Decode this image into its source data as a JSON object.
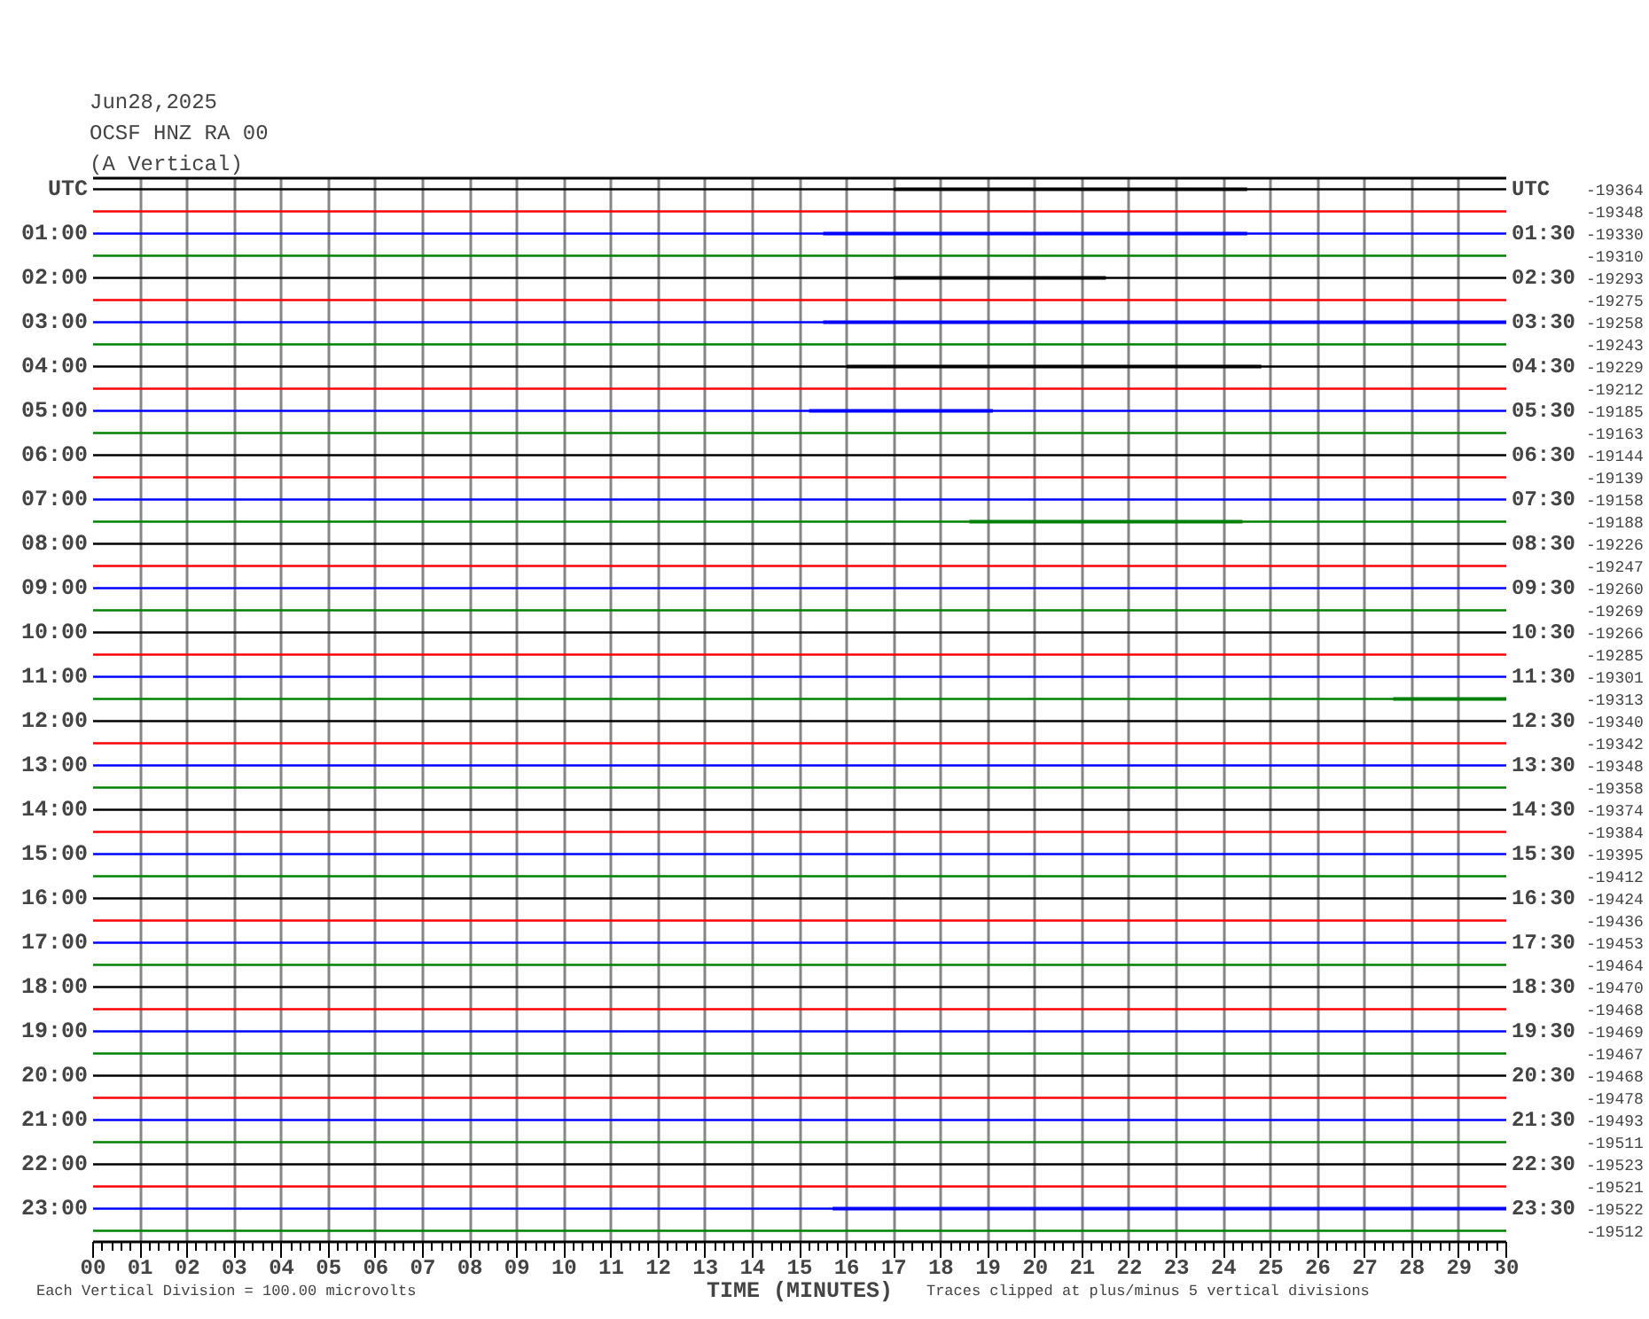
{
  "chart_data": {
    "type": "line",
    "title": "Jun28,2025",
    "subtitle": "OCSF HNZ RA 00\n(A Vertical)",
    "xlabel": "TIME (MINUTES)",
    "annotations": [
      "Each Vertical Division =  100.00 microvolts",
      "Traces clipped at plus/minus 5 vertical divisions",
      "-19364",
      "-19348",
      "-19330",
      "-19310",
      "-19293",
      "-19275",
      "-19258",
      "-19243",
      "-19229",
      "-19212",
      "-19185",
      "-19163",
      "-19144",
      "-19139",
      "-19158",
      "-19188",
      "-19226",
      "-19247",
      "-19260",
      "-19269",
      "-19266",
      "-19285",
      "-19301",
      "-19313",
      "-19340",
      "-19342",
      "-19348",
      "-19358",
      "-19374",
      "-19384",
      "-19395",
      "-19412",
      "-19424",
      "-19436",
      "-19453",
      "-19464",
      "-19470",
      "-19468",
      "-19469",
      "-19467",
      "-19468",
      "-19478",
      "-19493",
      "-19511",
      "-19523",
      "-19521",
      "-19522",
      "-19512"
    ],
    "grid": "x",
    "xlim": [
      0,
      30
    ],
    "ylim": [
      23.75,
      -0.25
    ],
    "y2lim": [
      24.25,
      0.25
    ],
    "xticks": [
      {
        "value": 0,
        "label": "00"
      },
      {
        "value": 0.2,
        "label": null
      },
      {
        "value": 0.4,
        "label": null
      },
      {
        "value": 0.6,
        "label": null
      },
      {
        "value": 0.8,
        "label": null
      },
      {
        "value": 1,
        "label": "01"
      },
      {
        "value": 1.2,
        "label": null
      },
      {
        "value": 1.4,
        "label": null
      },
      {
        "value": 1.6,
        "label": null
      },
      {
        "value": 1.8,
        "label": null
      },
      {
        "value": 2,
        "label": "02"
      },
      {
        "value": 2.2,
        "label": null
      },
      {
        "value": 2.4,
        "label": null
      },
      {
        "value": 2.6,
        "label": null
      },
      {
        "value": 2.8,
        "label": null
      },
      {
        "value": 3,
        "label": "03"
      },
      {
        "value": 3.2,
        "label": null
      },
      {
        "value": 3.4,
        "label": null
      },
      {
        "value": 3.6,
        "label": null
      },
      {
        "value": 3.8,
        "label": null
      },
      {
        "value": 4,
        "label": "04"
      },
      {
        "value": 4.2,
        "label": null
      },
      {
        "value": 4.4,
        "label": null
      },
      {
        "value": 4.6,
        "label": null
      },
      {
        "value": 4.8,
        "label": null
      },
      {
        "value": 5,
        "label": "05"
      },
      {
        "value": 5.2,
        "label": null
      },
      {
        "value": 5.4,
        "label": null
      },
      {
        "value": 5.6,
        "label": null
      },
      {
        "value": 5.8,
        "label": null
      },
      {
        "value": 6,
        "label": "06"
      },
      {
        "value": 6.2,
        "label": null
      },
      {
        "value": 6.4,
        "label": null
      },
      {
        "value": 6.6,
        "label": null
      },
      {
        "value": 6.8,
        "label": null
      },
      {
        "value": 7,
        "label": "07"
      },
      {
        "value": 7.2,
        "label": null
      },
      {
        "value": 7.4,
        "label": null
      },
      {
        "value": 7.6,
        "label": null
      },
      {
        "value": 7.8,
        "label": null
      },
      {
        "value": 8,
        "label": "08"
      },
      {
        "value": 8.2,
        "label": null
      },
      {
        "value": 8.4,
        "label": null
      },
      {
        "value": 8.6,
        "label": null
      },
      {
        "value": 8.8,
        "label": null
      },
      {
        "value": 9,
        "label": "09"
      },
      {
        "value": 9.2,
        "label": null
      },
      {
        "value": 9.4,
        "label": null
      },
      {
        "value": 9.6,
        "label": null
      },
      {
        "value": 9.8,
        "label": null
      },
      10,
      {
        "value": 10.2,
        "label": null
      },
      {
        "value": 10.4,
        "label": null
      },
      {
        "value": 10.6,
        "label": null
      },
      {
        "value": 10.8,
        "label": null
      },
      11,
      {
        "value": 11.2,
        "label": null
      },
      {
        "value": 11.4,
        "label": null
      },
      {
        "value": 11.6,
        "label": null
      },
      {
        "value": 11.8,
        "label": null
      },
      12,
      {
        "value": 12.2,
        "label": null
      },
      {
        "value": 12.4,
        "label": null
      },
      {
        "value": 12.6,
        "label": null
      },
      {
        "value": 12.8,
        "label": null
      },
      13,
      {
        "value": 13.2,
        "label": null
      },
      {
        "value": 13.4,
        "label": null
      },
      {
        "value": 13.6,
        "label": null
      },
      {
        "value": 13.8,
        "label": null
      },
      14,
      {
        "value": 14.2,
        "label": null
      },
      {
        "value": 14.4,
        "label": null
      },
      {
        "value": 14.6,
        "label": null
      },
      {
        "value": 14.8,
        "label": null
      },
      15,
      {
        "value": 15.2,
        "label": null
      },
      {
        "value": 15.4,
        "label": null
      },
      {
        "value": 15.6,
        "label": null
      },
      {
        "value": 15.8,
        "label": null
      },
      16,
      {
        "value": 16.2,
        "label": null
      },
      {
        "value": 16.4,
        "label": null
      },
      {
        "value": 16.6,
        "label": null
      },
      {
        "value": 16.8,
        "label": null
      },
      17,
      {
        "value": 17.2,
        "label": null
      },
      {
        "value": 17.4,
        "label": null
      },
      {
        "value": 17.6,
        "label": null
      },
      {
        "value": 17.8,
        "label": null
      },
      18,
      {
        "value": 18.2,
        "label": null
      },
      {
        "value": 18.4,
        "label": null
      },
      {
        "value": 18.6,
        "label": null
      },
      {
        "value": 18.8,
        "label": null
      },
      19,
      {
        "value": 19.2,
        "label": null
      },
      {
        "value": 19.4,
        "label": null
      },
      {
        "value": 19.6,
        "label": null
      },
      {
        "value": 19.8,
        "label": null
      },
      20,
      {
        "value": 20.2,
        "label": null
      },
      {
        "value": 20.4,
        "label": null
      },
      {
        "value": 20.6,
        "label": null
      },
      {
        "value": 20.8,
        "label": null
      },
      21,
      {
        "value": 21.2,
        "label": null
      },
      {
        "value": 21.4,
        "label": null
      },
      {
        "value": 21.6,
        "label": null
      },
      {
        "value": 21.8,
        "label": null
      },
      22,
      {
        "value": 22.2,
        "label": null
      },
      {
        "value": 22.4,
        "label": null
      },
      {
        "value": 22.6,
        "label": null
      },
      {
        "value": 22.8,
        "label": null
      },
      23,
      {
        "value": 23.2,
        "label": null
      },
      {
        "value": 23.4,
        "label": null
      },
      {
        "value": 23.6,
        "label": null
      },
      {
        "value": 23.8,
        "label": null
      },
      24,
      {
        "value": 24.2,
        "label": null
      },
      {
        "value": 24.4,
        "label": null
      },
      {
        "value": 24.6,
        "label": null
      },
      {
        "value": 24.8,
        "label": null
      },
      25,
      {
        "value": 25.2,
        "label": null
      },
      {
        "value": 25.4,
        "label": null
      },
      {
        "value": 25.6,
        "label": null
      },
      {
        "value": 25.8,
        "label": null
      },
      26,
      {
        "value": 26.2,
        "label": null
      },
      {
        "value": 26.4,
        "label": null
      },
      {
        "value": 26.6,
        "label": null
      },
      {
        "value": 26.8,
        "label": null
      },
      27,
      {
        "value": 27.2,
        "label": null
      },
      {
        "value": 27.4,
        "label": null
      },
      {
        "value": 27.6,
        "label": null
      },
      {
        "value": 27.8,
        "label": null
      },
      28,
      {
        "value": 28.2,
        "label": null
      },
      {
        "value": 28.4,
        "label": null
      },
      {
        "value": 28.6,
        "label": null
      },
      {
        "value": 28.8,
        "label": null
      },
      29,
      {
        "value": 29.2,
        "label": null
      },
      {
        "value": 29.4,
        "label": null
      },
      {
        "value": 29.6,
        "label": null
      },
      {
        "value": 29.8,
        "label": null
      },
      30
    ],
    "yticks": [
      {
        "value": 0,
        "label": "UTC"
      },
      {
        "value": 1,
        "label": "01:00"
      },
      {
        "value": 2,
        "label": "02:00"
      },
      {
        "value": 3,
        "label": "03:00"
      },
      {
        "value": 4,
        "label": "04:00"
      },
      {
        "value": 5,
        "label": "05:00"
      },
      {
        "value": 6,
        "label": "06:00"
      },
      {
        "value": 7,
        "label": "07:00"
      },
      {
        "value": 8,
        "label": "08:00"
      },
      {
        "value": 9,
        "label": "09:00"
      },
      {
        "value": 10,
        "label": "10:00"
      },
      {
        "value": 11,
        "label": "11:00"
      },
      {
        "value": 12,
        "label": "12:00"
      },
      {
        "value": 13,
        "label": "13:00"
      },
      {
        "value": 14,
        "label": "14:00"
      },
      {
        "value": 15,
        "label": "15:00"
      },
      {
        "value": 16,
        "label": "16:00"
      },
      {
        "value": 17,
        "label": "17:00"
      },
      {
        "value": 18,
        "label": "18:00"
      },
      {
        "value": 19,
        "label": "19:00"
      },
      {
        "value": 20,
        "label": "20:00"
      },
      {
        "value": 21,
        "label": "21:00"
      },
      {
        "value": 22,
        "label": "22:00"
      },
      {
        "value": 23,
        "label": "23:00"
      }
    ],
    "y2ticks": [
      {
        "value": 0.5,
        "label": "UTC"
      },
      {
        "value": 1.5,
        "label": "01:30"
      },
      {
        "value": 2.5,
        "label": "02:30"
      },
      {
        "value": 3.5,
        "label": "03:30"
      },
      {
        "value": 4.5,
        "label": "04:30"
      },
      {
        "value": 5.5,
        "label": "05:30"
      },
      {
        "value": 6.5,
        "label": "06:30"
      },
      {
        "value": 7.5,
        "label": "07:30"
      },
      {
        "value": 8.5,
        "label": "08:30"
      },
      {
        "value": 9.5,
        "label": "09:30"
      },
      {
        "value": 10.5,
        "label": "10:30"
      },
      {
        "value": 11.5,
        "label": "11:30"
      },
      {
        "value": 12.5,
        "label": "12:30"
      },
      {
        "value": 13.5,
        "label": "13:30"
      },
      {
        "value": 14.5,
        "label": "14:30"
      },
      {
        "value": 15.5,
        "label": "15:30"
      },
      {
        "value": 16.5,
        "label": "16:30"
      },
      {
        "value": 17.5,
        "label": "17:30"
      },
      {
        "value": 18.5,
        "label": "18:30"
      },
      {
        "value": 19.5,
        "label": "19:30"
      },
      {
        "value": 20.5,
        "label": "20:30"
      },
      {
        "value": 21.5,
        "label": "21:30"
      },
      {
        "value": 22.5,
        "label": "22:30"
      },
      {
        "value": 23.5,
        "label": "23:30"
      }
    ],
    "x": [
      0,
      30
    ],
    "series": [
      {
        "color": "#000000",
        "x": [
          0,
          17,
          24.5,
          30
        ],
        "values": [
          0,
          0,
          0,
          0
        ],
        "lower": [
          null,
          -0.04,
          -0.04,
          null
        ],
        "upper": [
          null,
          0.04,
          0.04,
          null
        ]
      },
      {
        "color": "#ff0000",
        "values": [
          0.5,
          0.5
        ]
      },
      {
        "color": "#0000ff",
        "x": [
          0,
          15.5,
          24.5,
          30
        ],
        "values": [
          1,
          1,
          1,
          1
        ],
        "lower": [
          null,
          0.96,
          0.96,
          null
        ],
        "upper": [
          null,
          1.04,
          1.04,
          null
        ]
      },
      {
        "color": "#008000",
        "values": [
          1.5,
          1.5
        ]
      },
      {
        "color": "#000000",
        "x": [
          0,
          17,
          21.5,
          30
        ],
        "values": [
          2,
          2,
          2,
          2
        ],
        "lower": [
          null,
          1.96,
          1.96,
          null
        ],
        "upper": [
          null,
          2.04,
          2.04,
          null
        ]
      },
      {
        "color": "#ff0000",
        "values": [
          2.5,
          2.5
        ]
      },
      {
        "color": "#0000ff",
        "x": [
          0,
          15.5,
          30
        ],
        "values": [
          3,
          3,
          3
        ],
        "lower": [
          null,
          2.96,
          2.96
        ],
        "upper": [
          null,
          3.04,
          3.04
        ]
      },
      {
        "color": "#008000",
        "values": [
          3.5,
          3.5
        ]
      },
      {
        "color": "#000000",
        "x": [
          0,
          16,
          24.8,
          30
        ],
        "values": [
          4,
          4,
          4,
          4
        ],
        "lower": [
          null,
          3.96,
          3.96,
          null
        ],
        "upper": [
          null,
          4.04,
          4.04,
          null
        ]
      },
      {
        "color": "#ff0000",
        "values": [
          4.5,
          4.5
        ]
      },
      {
        "color": "#0000ff",
        "x": [
          0,
          15.2,
          19.1,
          30
        ],
        "values": [
          5,
          5,
          5,
          5
        ],
        "lower": [
          null,
          4.96,
          4.96,
          null
        ],
        "upper": [
          null,
          5.04,
          5.04,
          null
        ]
      },
      {
        "color": "#008000",
        "values": [
          5.5,
          5.5
        ]
      },
      {
        "color": "#000000",
        "values": [
          6,
          6
        ]
      },
      {
        "color": "#ff0000",
        "values": [
          6.5,
          6.5
        ]
      },
      {
        "color": "#0000ff",
        "values": [
          7,
          7
        ]
      },
      {
        "color": "#008000",
        "x": [
          0,
          18.6,
          24.4,
          30
        ],
        "values": [
          7.5,
          7.5,
          7.5,
          7.5
        ],
        "lower": [
          null,
          7.46,
          7.46,
          null
        ],
        "upper": [
          null,
          7.54,
          7.54,
          null
        ]
      },
      {
        "color": "#000000",
        "values": [
          8,
          8
        ]
      },
      {
        "color": "#ff0000",
        "values": [
          8.5,
          8.5
        ]
      },
      {
        "color": "#0000ff",
        "values": [
          9,
          9
        ]
      },
      {
        "color": "#008000",
        "values": [
          9.5,
          9.5
        ]
      },
      {
        "color": "#000000",
        "values": [
          10,
          10
        ]
      },
      {
        "color": "#ff0000",
        "values": [
          10.5,
          10.5
        ]
      },
      {
        "color": "#0000ff",
        "values": [
          11,
          11
        ]
      },
      {
        "color": "#008000",
        "x": [
          0,
          27.6,
          30
        ],
        "values": [
          11.5,
          11.5,
          11.5
        ],
        "lower": [
          null,
          11.46,
          11.46
        ],
        "upper": [
          null,
          11.54,
          11.54
        ]
      },
      {
        "color": "#000000",
        "values": [
          12,
          12
        ]
      },
      {
        "color": "#ff0000",
        "values": [
          12.5,
          12.5
        ]
      },
      {
        "color": "#0000ff",
        "values": [
          13,
          13
        ]
      },
      {
        "color": "#008000",
        "values": [
          13.5,
          13.5
        ]
      },
      {
        "color": "#000000",
        "values": [
          14,
          14
        ]
      },
      {
        "color": "#ff0000",
        "values": [
          14.5,
          14.5
        ]
      },
      {
        "color": "#0000ff",
        "values": [
          15,
          15
        ]
      },
      {
        "color": "#008000",
        "values": [
          15.5,
          15.5
        ]
      },
      {
        "color": "#000000",
        "values": [
          16,
          16
        ]
      },
      {
        "color": "#ff0000",
        "values": [
          16.5,
          16.5
        ]
      },
      {
        "color": "#0000ff",
        "values": [
          17,
          17
        ]
      },
      {
        "color": "#008000",
        "values": [
          17.5,
          17.5
        ]
      },
      {
        "color": "#000000",
        "values": [
          18,
          18
        ]
      },
      {
        "color": "#ff0000",
        "values": [
          18.5,
          18.5
        ]
      },
      {
        "color": "#0000ff",
        "values": [
          19,
          19
        ]
      },
      {
        "color": "#008000",
        "values": [
          19.5,
          19.5
        ]
      },
      {
        "color": "#000000",
        "values": [
          20,
          20
        ]
      },
      {
        "color": "#ff0000",
        "values": [
          20.5,
          20.5
        ]
      },
      {
        "color": "#0000ff",
        "values": [
          21,
          21
        ]
      },
      {
        "color": "#008000",
        "values": [
          21.5,
          21.5
        ]
      },
      {
        "color": "#000000",
        "values": [
          22,
          22
        ]
      },
      {
        "color": "#ff0000",
        "values": [
          22.5,
          22.5
        ]
      },
      {
        "color": "#0000ff",
        "x": [
          0,
          15.7,
          30
        ],
        "values": [
          23,
          23,
          23
        ],
        "lower": [
          null,
          22.96,
          22.96
        ],
        "upper": [
          null,
          23.04,
          23.04
        ]
      },
      {
        "color": "#008000",
        "values": [
          23.5,
          23.5
        ]
      }
    ]
  }
}
